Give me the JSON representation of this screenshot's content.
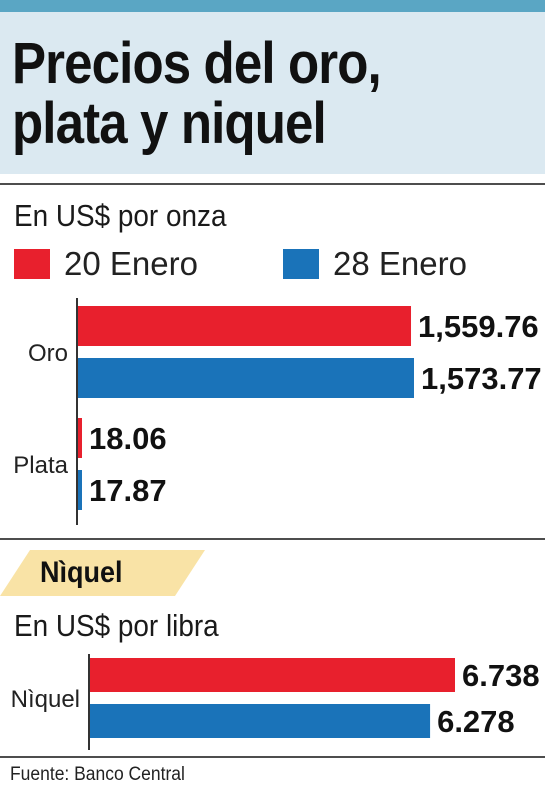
{
  "header": {
    "title_line1": "Precios del oro,",
    "title_line2": "plata y niquel"
  },
  "colors": {
    "series_1": "#e8202d",
    "series_2": "#1a73b9",
    "header_bg": "#dbe9f1",
    "tag_bg": "#f9e3a6"
  },
  "legend": [
    {
      "label": "20 Enero",
      "color": "#e8202d"
    },
    {
      "label": "28 Enero",
      "color": "#1a73b9"
    }
  ],
  "chart_data": [
    {
      "type": "bar",
      "orientation": "horizontal",
      "subtitle": "En US$ por onza",
      "categories": [
        "Oro",
        "Plata"
      ],
      "series": [
        {
          "name": "20 Enero",
          "values": [
            1559.76,
            18.06
          ],
          "labels": [
            "1,559.76",
            "18.06"
          ]
        },
        {
          "name": "28 Enero",
          "values": [
            1573.77,
            17.87
          ],
          "labels": [
            "1,573.77",
            "17.87"
          ]
        }
      ],
      "xlim": [
        0,
        1573.77
      ],
      "legend_position": "top"
    },
    {
      "type": "bar",
      "orientation": "horizontal",
      "section": "Nìquel",
      "subtitle": "En US$ por libra",
      "categories": [
        "Nìquel"
      ],
      "series": [
        {
          "name": "20 Enero",
          "values": [
            6.738
          ],
          "labels": [
            "6.738"
          ]
        },
        {
          "name": "28 Enero",
          "values": [
            6.278
          ],
          "labels": [
            "6.278"
          ]
        }
      ],
      "xlim": [
        0,
        6.738
      ]
    }
  ],
  "footer": {
    "source": "Fuente: Banco Central"
  }
}
